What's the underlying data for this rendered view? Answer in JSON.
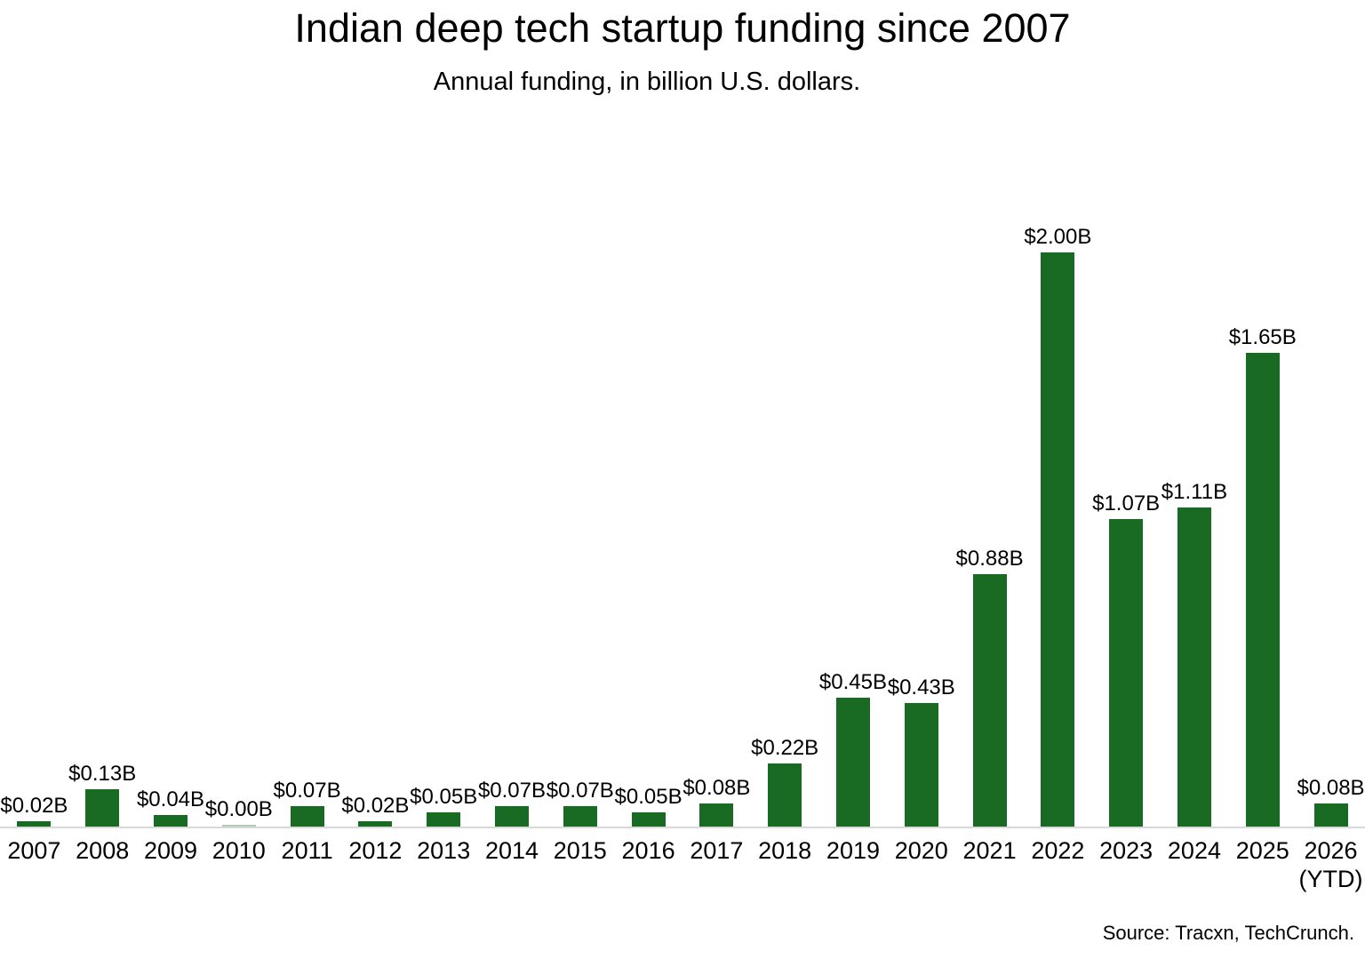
{
  "chart_data": {
    "type": "bar",
    "title": "Indian deep tech startup funding since 2007",
    "subtitle": "Annual funding, in billion U.S. dollars.",
    "categories": [
      "2007",
      "2008",
      "2009",
      "2010",
      "2011",
      "2012",
      "2013",
      "2014",
      "2015",
      "2016",
      "2017",
      "2018",
      "2019",
      "2020",
      "2021",
      "2022",
      "2023",
      "2024",
      "2025",
      "2026\n(YTD)"
    ],
    "values": [
      0.02,
      0.13,
      0.04,
      0.0,
      0.07,
      0.02,
      0.05,
      0.07,
      0.07,
      0.05,
      0.08,
      0.22,
      0.45,
      0.43,
      0.88,
      2.0,
      1.07,
      1.11,
      1.65,
      0.08
    ],
    "value_labels": [
      "$0.02B",
      "$0.13B",
      "$0.04B",
      "$0.00B",
      "$0.07B",
      "$0.02B",
      "$0.05B",
      "$0.07B",
      "$0.07B",
      "$0.05B",
      "$0.08B",
      "$0.22B",
      "$0.45B",
      "$0.43B",
      "$0.88B",
      "$2.00B",
      "$1.07B",
      "$1.11B",
      "$1.65B",
      "$0.08B"
    ],
    "xlabel": "",
    "ylabel": "",
    "ylim": [
      0,
      2.0
    ],
    "grid": false,
    "legend": "none",
    "bar_color": "#196b24",
    "axis_line_color": "#d9d9d9",
    "text_color": "#000000"
  },
  "source": "Source: Tracxn, TechCrunch."
}
